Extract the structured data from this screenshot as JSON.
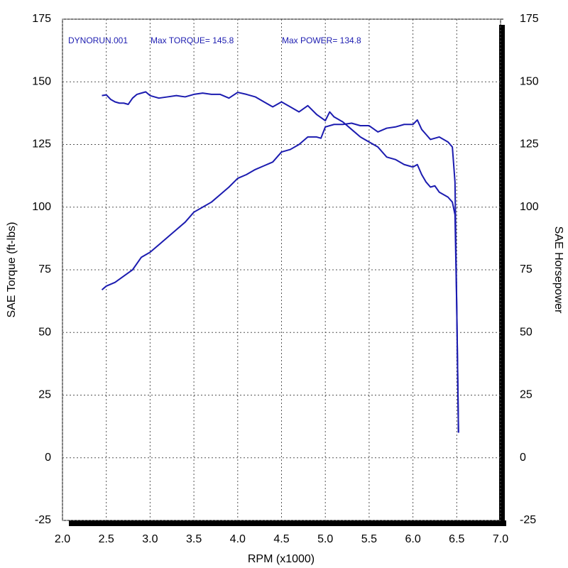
{
  "chart_data": {
    "type": "line",
    "annotations": [
      "DYNORUN.001",
      "Max TORQUE= 145.8",
      "Max POWER= 134.8"
    ],
    "xlabel": "RPM (x1000)",
    "ylabel": "SAE Torque (ft-lbs)",
    "y2label": "SAE Horsepower",
    "xlim": [
      2.0,
      7.0
    ],
    "xticks": [
      {
        "value": 2,
        "label": "2.0"
      },
      2.5,
      {
        "value": 3,
        "label": "3.0"
      },
      3.5,
      {
        "value": 4,
        "label": "4.0"
      },
      4.5,
      {
        "value": 5,
        "label": "5.0"
      },
      5.5,
      {
        "value": 6,
        "label": "6.0"
      },
      6.5,
      {
        "value": 7,
        "label": "7.0"
      }
    ],
    "ylim": [
      -25,
      175
    ],
    "yticks": [
      -25,
      0,
      25,
      50,
      75,
      100,
      125,
      150,
      175
    ],
    "y2lim": [
      -25,
      175
    ],
    "y2ticks": [
      -25,
      0,
      25,
      50,
      75,
      100,
      125,
      150,
      175
    ],
    "grid": true,
    "series": [
      {
        "color": "#1c1cb0",
        "axis": "y",
        "x": [
          2.45,
          2.5,
          2.55,
          2.6,
          2.65,
          2.7,
          2.75,
          2.8,
          2.85,
          2.9,
          2.95,
          3.0,
          3.1,
          3.2,
          3.3,
          3.4,
          3.5,
          3.6,
          3.7,
          3.8,
          3.9,
          4.0,
          4.1,
          4.2,
          4.3,
          4.4,
          4.5,
          4.6,
          4.7,
          4.8,
          4.9,
          5.0,
          5.05,
          5.1,
          5.2,
          5.3,
          5.4,
          5.5,
          5.6,
          5.7,
          5.8,
          5.9,
          6.0,
          6.05,
          6.1,
          6.15,
          6.2,
          6.25,
          6.3,
          6.4,
          6.45,
          6.48,
          6.5,
          6.52
        ],
        "values": [
          144.5,
          144.8,
          143,
          142,
          141.5,
          141.5,
          141,
          143.5,
          145,
          145.5,
          146,
          144.5,
          143.5,
          144,
          144.5,
          144,
          145,
          145.5,
          145,
          145,
          143.5,
          145.8,
          145,
          144,
          142,
          140,
          142,
          140,
          138,
          140.5,
          137,
          134.5,
          138,
          136,
          134,
          131,
          128,
          126,
          124,
          120,
          119,
          117,
          116,
          117,
          113,
          110,
          108,
          108.5,
          106,
          104,
          102,
          97,
          60,
          10
        ]
      },
      {
        "color": "#1c1cb0",
        "axis": "y2",
        "x": [
          2.45,
          2.5,
          2.6,
          2.7,
          2.8,
          2.9,
          3.0,
          3.1,
          3.2,
          3.3,
          3.4,
          3.5,
          3.6,
          3.7,
          3.8,
          3.9,
          4.0,
          4.1,
          4.2,
          4.3,
          4.4,
          4.5,
          4.6,
          4.7,
          4.8,
          4.9,
          4.95,
          5.0,
          5.1,
          5.2,
          5.3,
          5.4,
          5.5,
          5.6,
          5.7,
          5.8,
          5.9,
          6.0,
          6.05,
          6.1,
          6.15,
          6.2,
          6.3,
          6.4,
          6.45,
          6.48,
          6.5,
          6.52
        ],
        "values": [
          67,
          68.5,
          70,
          72.5,
          75,
          80,
          82,
          85,
          88,
          91,
          94,
          98,
          100,
          102,
          105,
          108,
          111.5,
          113,
          115,
          116.5,
          118,
          122,
          123,
          125,
          128,
          128,
          127.5,
          132,
          133,
          133,
          133.5,
          132.5,
          132.5,
          130,
          131.5,
          132,
          133,
          133,
          134.8,
          131,
          129,
          127,
          128,
          126,
          124,
          110,
          60,
          10
        ]
      }
    ]
  }
}
